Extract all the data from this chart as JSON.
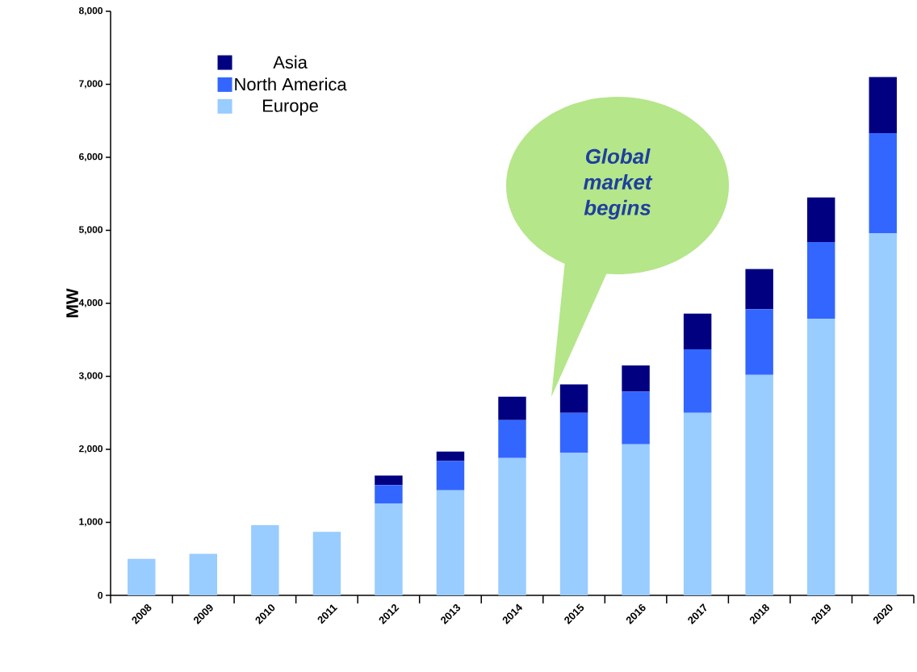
{
  "chart_data": {
    "type": "bar",
    "stacked": true,
    "ylabel": "MW",
    "categories": [
      "2008",
      "2009",
      "2010",
      "2011",
      "2012",
      "2013",
      "2014",
      "2015",
      "2016",
      "2017",
      "2018",
      "2019",
      "2020"
    ],
    "series": [
      {
        "name": "Europe",
        "color": "#99ccff",
        "values": [
          500,
          570,
          960,
          870,
          1260,
          1440,
          1880,
          1950,
          2070,
          2500,
          3020,
          3790,
          4960
        ]
      },
      {
        "name": "North America",
        "color": "#3366ff",
        "values": [
          null,
          null,
          null,
          null,
          250,
          400,
          520,
          550,
          720,
          870,
          900,
          1050,
          1370
        ]
      },
      {
        "name": "Asia",
        "color": "#000080",
        "values": [
          null,
          null,
          null,
          null,
          130,
          130,
          320,
          390,
          360,
          490,
          550,
          610,
          770
        ]
      }
    ],
    "ylim": [
      0,
      8000
    ],
    "yticks": [
      0,
      {
        "value": 1000,
        "label": "1,000"
      },
      {
        "value": 2000,
        "label": "2,000"
      },
      {
        "value": 3000,
        "label": "3,000"
      },
      {
        "value": 4000,
        "label": "4,000"
      },
      {
        "value": 5000,
        "label": "5,000"
      },
      {
        "value": 6000,
        "label": "6,000"
      },
      {
        "value": 7000,
        "label": "7,000"
      },
      {
        "value": 8000,
        "label": "8,000"
      }
    ],
    "legend": "top left",
    "annotations": [
      "Global market begins"
    ]
  }
}
